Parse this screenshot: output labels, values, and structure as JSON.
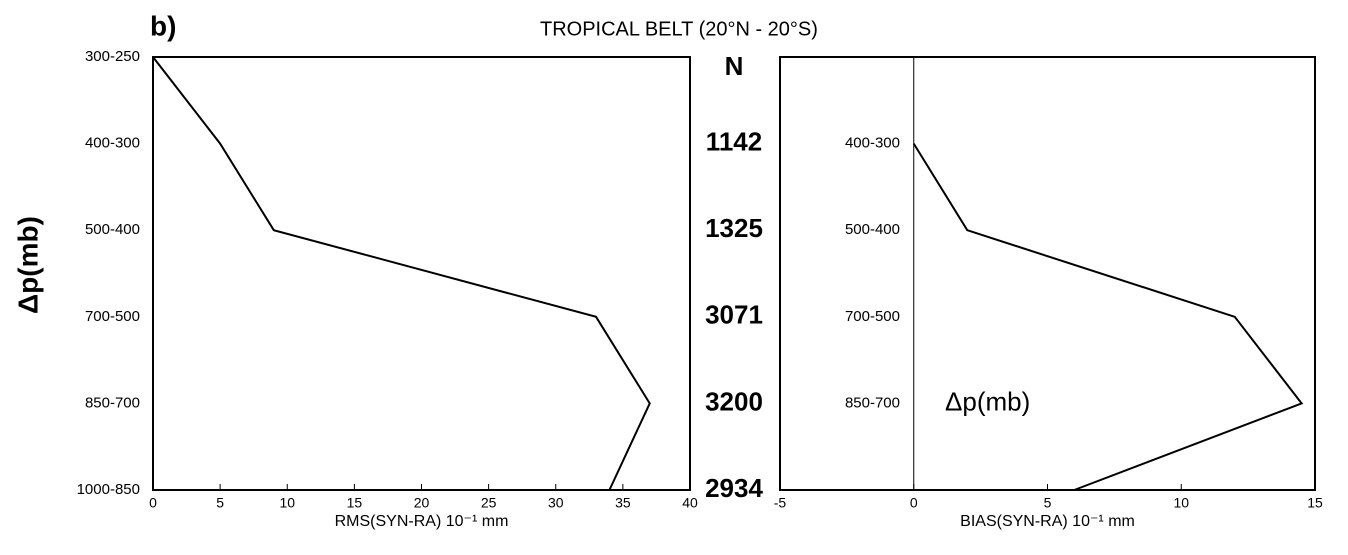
{
  "title": "TROPICAL BELT (20°N - 20°S)",
  "panel_label": "b)",
  "y_label": "Δp(mb)",
  "n_column": {
    "header": "N",
    "values": [
      1142,
      1325,
      3071,
      3200,
      2934
    ]
  },
  "chart_data": [
    {
      "type": "line",
      "x_label": "RMS(SYN-RA) 10⁻¹ mm",
      "categories": [
        "300-250",
        "400-300",
        "500-400",
        "700-500",
        "850-700",
        "1000-850"
      ],
      "values": [
        0,
        5,
        9,
        33,
        37,
        34
      ],
      "color": "#000000",
      "xlim": [
        0,
        40
      ],
      "xticks": [
        0,
        5,
        10,
        15,
        20,
        25,
        30,
        35,
        40
      ]
    },
    {
      "type": "line",
      "x_label": "BIAS(SYN-RA) 10⁻¹ mm",
      "annotation": "Δp(mb)",
      "categories": [
        null,
        "400-300",
        "500-400",
        "700-500",
        "850-700",
        null
      ],
      "values": [
        null,
        0,
        2,
        12,
        14.5,
        6
      ],
      "color": "#000000",
      "xlim": [
        -5,
        15
      ],
      "xticks": [
        -5,
        0,
        5,
        10,
        15
      ],
      "zero_line": true
    }
  ]
}
